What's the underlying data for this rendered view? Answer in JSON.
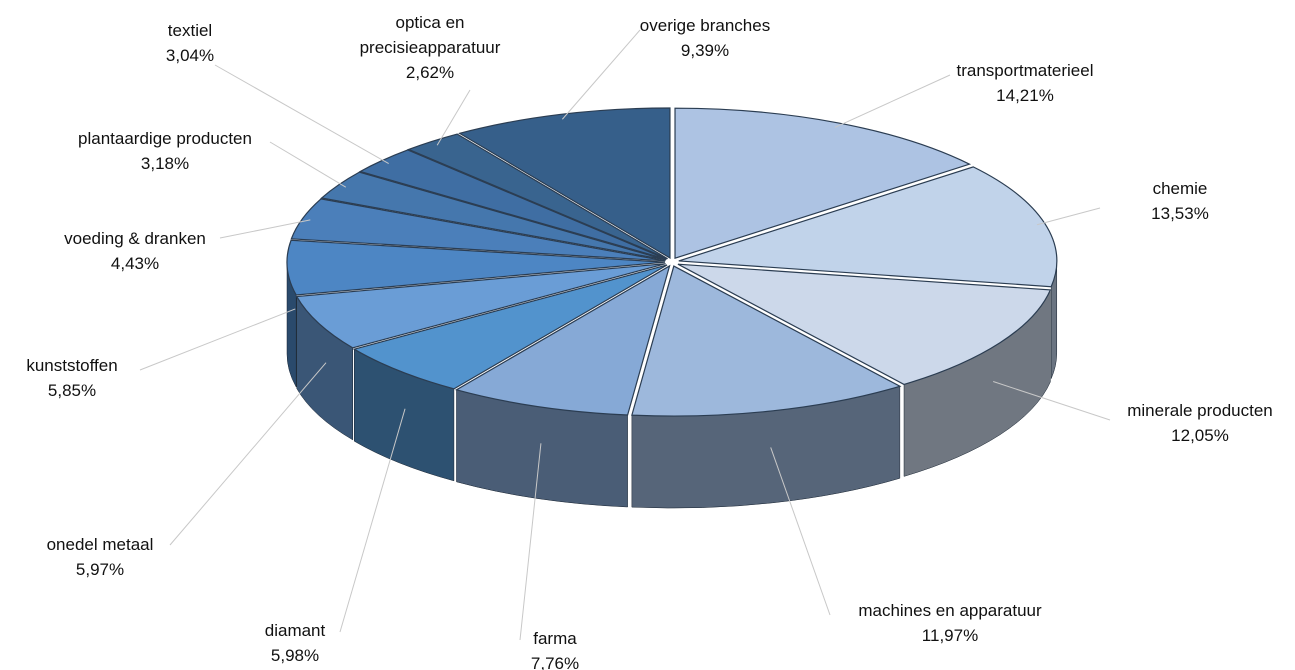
{
  "chart_data": {
    "type": "pie3d",
    "categories": [
      "transportmaterieel",
      "chemie",
      "minerale producten",
      "machines en apparatuur",
      "farma",
      "diamant",
      "onedel metaal",
      "kunststoffen",
      "voeding & dranken",
      "plantaardige producten",
      "textiel",
      "optica en precisieapparatuur",
      "overige branches"
    ],
    "values": [
      14.21,
      13.53,
      12.05,
      11.97,
      7.76,
      5.98,
      5.97,
      5.85,
      4.43,
      3.18,
      3.04,
      2.62,
      9.39
    ],
    "value_labels": [
      "14,21%",
      "13,53%",
      "12,05%",
      "11,97%",
      "7,76%",
      "5,98%",
      "5,97%",
      "5,85%",
      "4,43%",
      "3,18%",
      "3,04%",
      "2,62%",
      "9,39%"
    ],
    "colors": [
      "#adc3e3",
      "#c1d3ea",
      "#ccd8ea",
      "#9db8dc",
      "#86a9d6",
      "#5293cd",
      "#6a9dd6",
      "#4d86c4",
      "#4b7fba",
      "#4577ad",
      "#3f6ea3",
      "#39648f",
      "#365f8a"
    ]
  }
}
